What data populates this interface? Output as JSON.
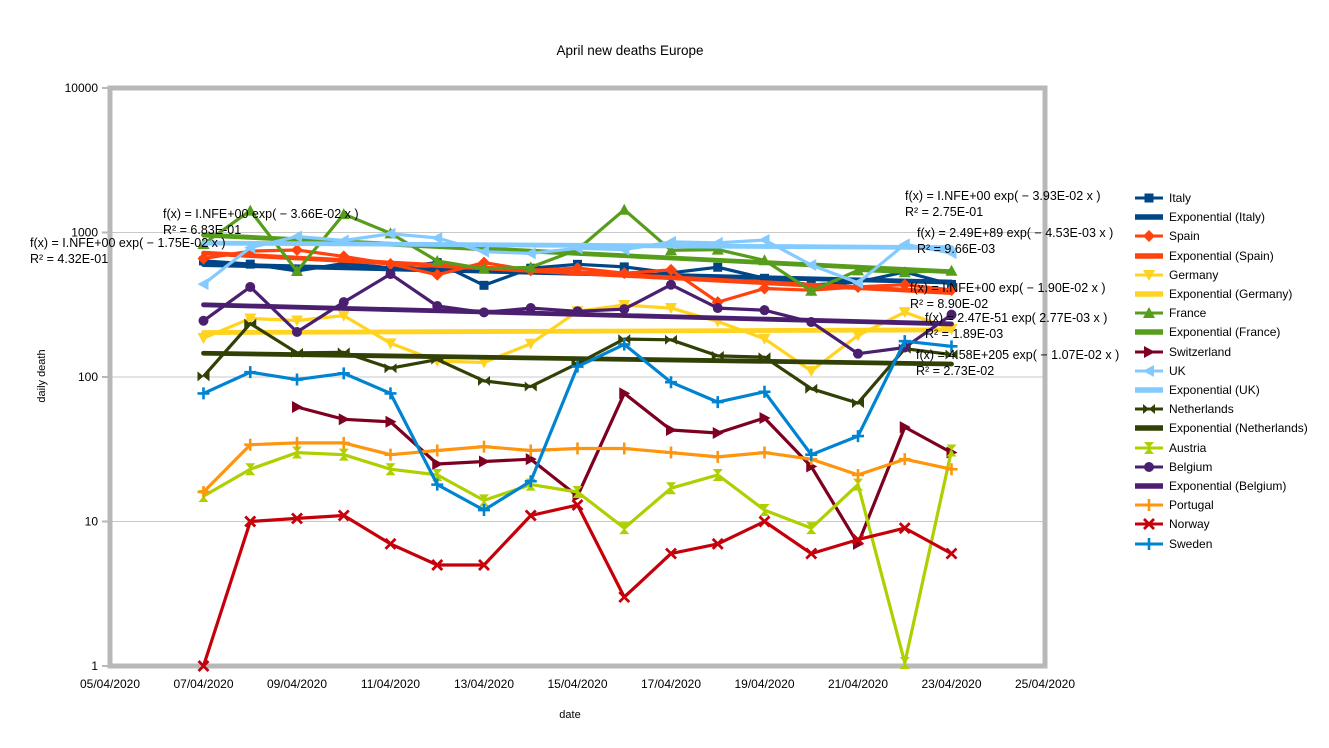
{
  "chart_data": {
    "type": "line",
    "title": "April new deaths Europe",
    "xlabel": "date",
    "ylabel": "daily death",
    "y_scale": "log",
    "ylim": [
      1,
      10000
    ],
    "grid": "horizontal-major",
    "legend_position": "right",
    "y_ticks": [
      "10000",
      "1000",
      "100",
      "10",
      "1"
    ],
    "x_ticks": [
      "05/04/2020",
      "07/04/2020",
      "09/04/2020",
      "11/04/2020",
      "13/04/2020",
      "15/04/2020",
      "17/04/2020",
      "19/04/2020",
      "21/04/2020",
      "23/04/2020",
      "25/04/2020"
    ],
    "dates": [
      "07/04/2020",
      "08/04/2020",
      "09/04/2020",
      "10/04/2020",
      "11/04/2020",
      "12/04/2020",
      "13/04/2020",
      "14/04/2020",
      "15/04/2020",
      "16/04/2020",
      "17/04/2020",
      "18/04/2020",
      "19/04/2020",
      "20/04/2020",
      "21/04/2020",
      "22/04/2020",
      "23/04/2020"
    ],
    "series": [
      {
        "name": "Italy",
        "kind": "data",
        "color": "#004586",
        "marker": "square",
        "values": [
          636,
          604,
          542,
          610,
          570,
          619,
          431,
          566,
          602,
          578,
          525,
          575,
          482,
          433,
          454,
          534,
          437
        ]
      },
      {
        "name": "Exponential (Italy)",
        "kind": "trend",
        "color": "#004586",
        "start": 600,
        "end": 454
      },
      {
        "name": "Spain",
        "kind": "data",
        "color": "#ff420e",
        "marker": "diamond",
        "values": [
          660,
          743,
          757,
          683,
          605,
          510,
          619,
          547,
          567,
          523,
          551,
          330,
          410,
          399,
          420,
          435,
          400
        ]
      },
      {
        "name": "Exponential (Spain)",
        "kind": "trend",
        "color": "#ff420e",
        "start": 720,
        "end": 384
      },
      {
        "name": "Germany",
        "kind": "data",
        "color": "#ffd320",
        "marker": "triangle-down",
        "values": [
          186,
          254,
          246,
          266,
          171,
          129,
          126,
          170,
          285,
          315,
          300,
          242,
          184,
          110,
          194,
          281,
          215
        ]
      },
      {
        "name": "Exponential (Germany)",
        "kind": "trend",
        "color": "#ffd320",
        "start": 203,
        "end": 212
      },
      {
        "name": "France",
        "kind": "data",
        "color": "#579d1c",
        "marker": "triangle-up",
        "values": [
          833,
          1417,
          541,
          1341,
          987,
          635,
          561,
          574,
          762,
          1438,
          753,
          761,
          642,
          395,
          547,
          531,
          544
        ]
      },
      {
        "name": "Exponential (France)",
        "kind": "trend",
        "color": "#579d1c",
        "start": 960,
        "end": 535
      },
      {
        "name": "Switzerland",
        "kind": "data",
        "color": "#7e0021",
        "marker": "triangle-right",
        "values": [
          null,
          null,
          62,
          51,
          49,
          25,
          26,
          27,
          15,
          77,
          43,
          41,
          52,
          24,
          7,
          45,
          30
        ]
      },
      {
        "name": "UK",
        "kind": "data",
        "color": "#83caff",
        "marker": "triangle-left",
        "values": [
          439,
          786,
          938,
          881,
          980,
          917,
          737,
          717,
          778,
          761,
          861,
          847,
          888,
          596,
          449,
          828,
          720
        ]
      },
      {
        "name": "Exponential (UK)",
        "kind": "trend",
        "color": "#83caff",
        "start": 845,
        "end": 786
      },
      {
        "name": "Netherlands",
        "kind": "data",
        "color": "#314004",
        "marker": "bowtie-h",
        "values": [
          101,
          234,
          147,
          148,
          115,
          132,
          94,
          86,
          124,
          183,
          181,
          140,
          137,
          83,
          66,
          157,
          143
        ]
      },
      {
        "name": "Exponential (Netherlands)",
        "kind": "trend",
        "color": "#314004",
        "start": 146,
        "end": 123
      },
      {
        "name": "Austria",
        "kind": "data",
        "color": "#aecf00",
        "marker": "bowtie-v",
        "values": [
          15,
          23,
          30,
          29,
          23,
          21,
          14,
          18,
          16,
          9,
          17,
          21,
          12,
          9,
          18,
          1.05,
          31
        ]
      },
      {
        "name": "Belgium",
        "kind": "data",
        "color": "#4b1f6f",
        "marker": "circle",
        "values": [
          245,
          420,
          205,
          330,
          515,
          310,
          280,
          300,
          285,
          295,
          435,
          300,
          290,
          240,
          145,
          160,
          270
        ]
      },
      {
        "name": "Exponential (Belgium)",
        "kind": "trend",
        "color": "#4b1f6f",
        "start": 316,
        "end": 233
      },
      {
        "name": "Portugal",
        "kind": "data",
        "color": "#ff950e",
        "marker": "plus",
        "values": [
          16,
          34,
          35,
          35,
          29,
          31,
          33,
          31,
          32,
          32,
          30,
          28,
          30,
          27,
          21,
          27,
          23
        ]
      },
      {
        "name": "Norway",
        "kind": "data",
        "color": "#c5000b",
        "marker": "x",
        "values": [
          1,
          10,
          10.5,
          11,
          7,
          5,
          5,
          11,
          13,
          3,
          6,
          7,
          10,
          6,
          7.5,
          9,
          6
        ]
      },
      {
        "name": "Sweden",
        "kind": "data",
        "color": "#0084d1",
        "marker": "plus",
        "values": [
          77,
          108,
          96,
          106,
          77,
          18,
          12,
          19,
          118,
          168,
          92,
          67,
          79,
          29,
          39,
          177,
          163
        ]
      }
    ],
    "annotations": [
      {
        "x": 163,
        "y": 218,
        "line1": "f(x) = I.NFE+00 exp( − 3.66E-02 x )",
        "line2": "R² = 6.83E-01"
      },
      {
        "x": 30,
        "y": 247,
        "line1": "f(x) = I.NFE+00 exp( − 1.75E-02 x )",
        "line2": "R² = 4.32E-01"
      },
      {
        "x": 905,
        "y": 200,
        "line1": "f(x) = I.NFE+00 exp( − 3.93E-02 x )",
        "line2": "R² = 2.75E-01"
      },
      {
        "x": 917,
        "y": 237,
        "line1": "f(x) = 2.49E+89 exp( − 4.53E-03 x )",
        "line2": "R² = 9.66E-03"
      },
      {
        "x": 910,
        "y": 292,
        "line1": "f(x) = I.NFE+00 exp( − 1.90E-02 x )",
        "line2": "R² = 8.90E-02"
      },
      {
        "x": 925,
        "y": 322,
        "line1": "f(x) = 2.47E-51 exp( 2.77E-03 x )",
        "line2": "R² = 1.89E-03"
      },
      {
        "x": 916,
        "y": 359,
        "line1": "f(x) = 4.58E+205 exp( − 1.07E-02 x )",
        "line2": "R² = 2.73E-02"
      }
    ],
    "colors": {
      "plot_border": "#b8b8b8",
      "gridline": "#c9c9c9",
      "text": "#000000"
    }
  }
}
